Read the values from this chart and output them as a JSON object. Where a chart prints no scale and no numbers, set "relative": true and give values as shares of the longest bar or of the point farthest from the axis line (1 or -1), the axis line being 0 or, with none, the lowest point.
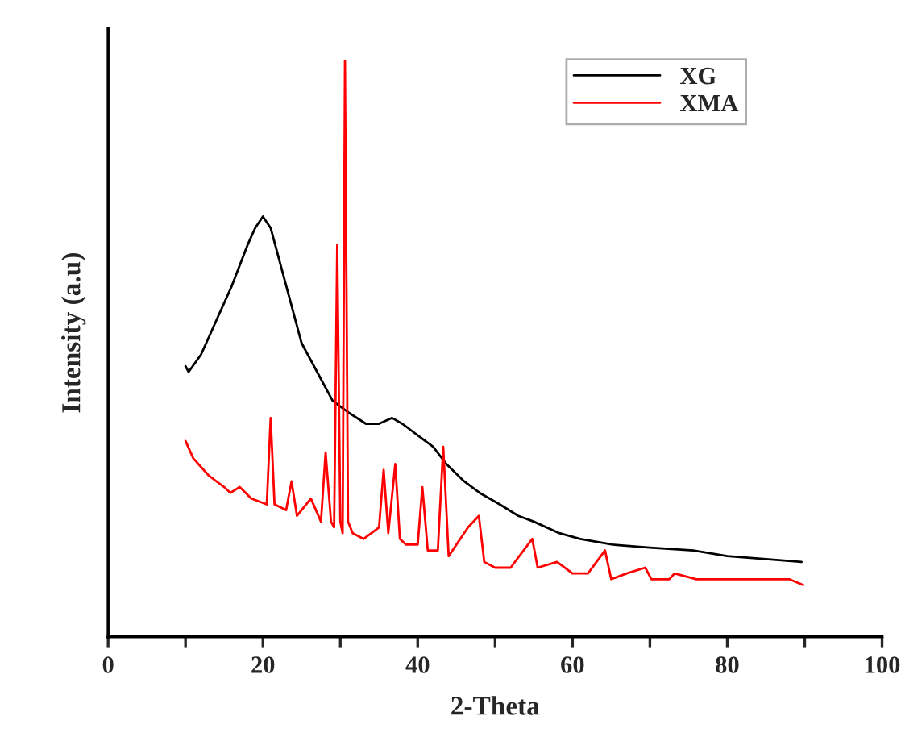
{
  "chart_data": {
    "type": "line",
    "relative": true,
    "xlabel": "2-Theta",
    "ylabel": "Intensity (a.u)",
    "xlim": [
      0,
      100
    ],
    "xticks": [
      0,
      {
        "value": 10,
        "label": null
      },
      20,
      {
        "value": 30,
        "label": null
      },
      40,
      {
        "value": 50,
        "label": null
      },
      60,
      {
        "value": 70,
        "label": null
      },
      80,
      {
        "value": 90,
        "label": null
      },
      100
    ],
    "tick_labels": "x",
    "legend": "top right",
    "grid": false,
    "series": [
      {
        "name": "XG",
        "color": "#000000",
        "x": [
          10,
          10.4,
          12,
          14,
          16,
          18,
          19,
          20,
          21,
          22,
          23,
          25,
          27,
          29,
          31,
          33.3,
          35,
          36.7,
          38,
          40,
          42,
          43.7,
          46,
          48,
          50.6,
          53,
          55,
          58.3,
          61,
          65.2,
          70,
          75.6,
          80,
          85,
          89.6
        ],
        "values": [
          0.47,
          0.46,
          0.49,
          0.55,
          0.61,
          0.68,
          0.71,
          0.73,
          0.71,
          0.66,
          0.61,
          0.51,
          0.46,
          0.41,
          0.39,
          0.37,
          0.37,
          0.38,
          0.37,
          0.35,
          0.33,
          0.3,
          0.27,
          0.25,
          0.23,
          0.21,
          0.2,
          0.18,
          0.17,
          0.16,
          0.155,
          0.15,
          0.14,
          0.135,
          0.13
        ]
      },
      {
        "name": "XMA",
        "color": "#ff0000",
        "x": [
          10,
          11,
          13,
          15,
          15.8,
          17,
          18.5,
          20.5,
          21,
          21.5,
          23,
          23.7,
          24.4,
          26.2,
          27.5,
          28.1,
          28.8,
          29.2,
          29.6,
          30.0,
          30.3,
          30.6,
          31.0,
          31.6,
          33,
          35,
          35.6,
          36.2,
          37.1,
          37.7,
          38.5,
          40,
          40.6,
          41.3,
          42.6,
          43.3,
          44,
          46.5,
          47.9,
          48.6,
          50,
          52,
          54.8,
          55.5,
          58,
          60,
          62,
          64.2,
          65,
          67,
          69.4,
          70.2,
          72.5,
          73.2,
          76,
          80,
          83,
          86,
          88,
          89.8
        ],
        "values": [
          0.34,
          0.31,
          0.28,
          0.26,
          0.25,
          0.26,
          0.24,
          0.23,
          0.38,
          0.23,
          0.22,
          0.27,
          0.21,
          0.24,
          0.2,
          0.32,
          0.2,
          0.19,
          0.68,
          0.2,
          0.18,
          1.0,
          0.2,
          0.18,
          0.17,
          0.19,
          0.29,
          0.18,
          0.3,
          0.17,
          0.16,
          0.16,
          0.26,
          0.15,
          0.15,
          0.33,
          0.14,
          0.19,
          0.21,
          0.13,
          0.12,
          0.12,
          0.17,
          0.12,
          0.13,
          0.11,
          0.11,
          0.15,
          0.1,
          0.11,
          0.12,
          0.1,
          0.1,
          0.11,
          0.1,
          0.1,
          0.1,
          0.1,
          0.1,
          0.09
        ]
      }
    ]
  }
}
